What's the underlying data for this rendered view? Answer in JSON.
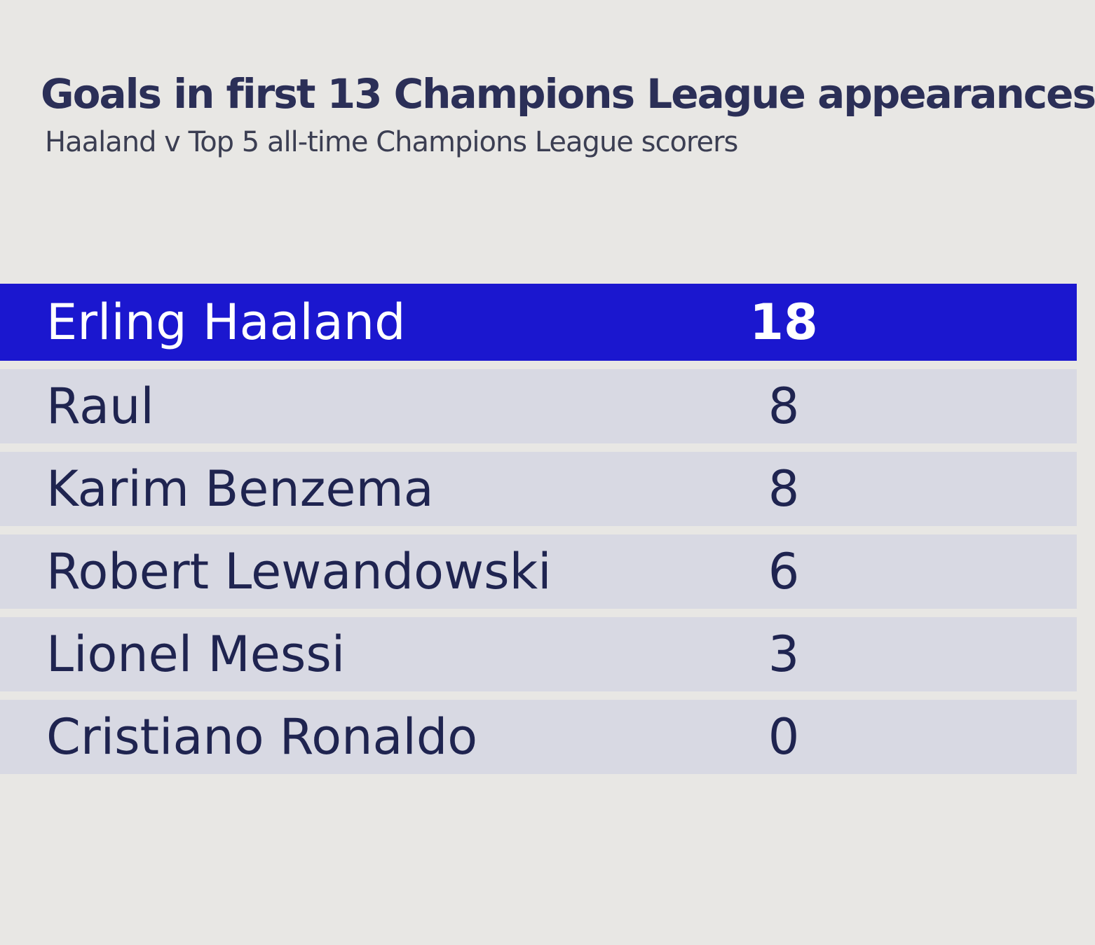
{
  "header": {
    "title": "Goals in first 13 Champions League appearances",
    "subtitle": "Haaland v Top 5 all-time Champions League scorers"
  },
  "table": {
    "rows": [
      [
        "Erling Haaland",
        18
      ],
      [
        "Raul",
        8
      ],
      [
        "Karim Benzema",
        8
      ],
      [
        "Robert Lewandowski",
        6
      ],
      [
        "Lionel Messi",
        3
      ],
      [
        "Cristiano Ronaldo",
        0
      ]
    ]
  }
}
